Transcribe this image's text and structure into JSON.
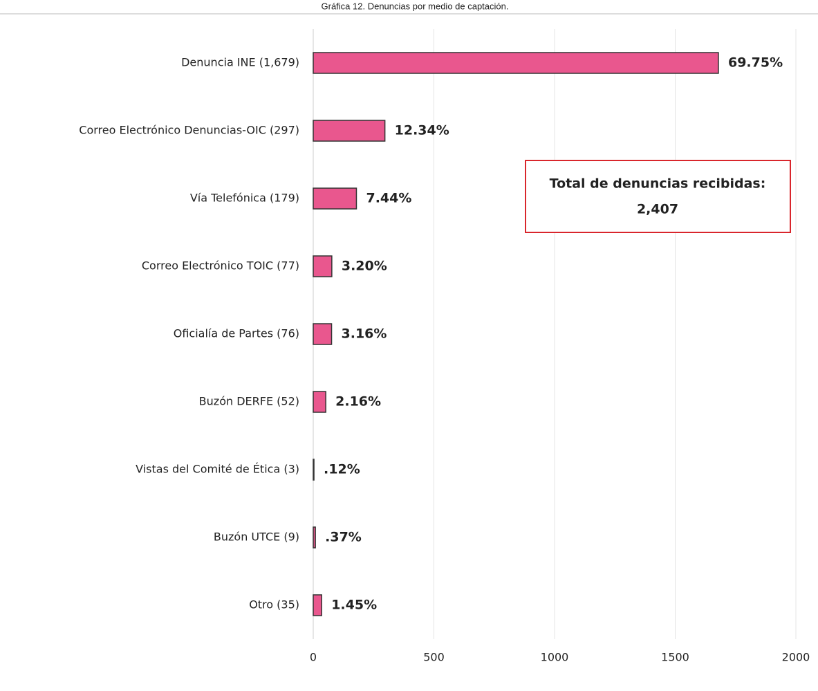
{
  "chart_data": {
    "type": "barh",
    "title": "Gráfica 12. Denuncias por medio de captación.",
    "categories": [
      "Denuncia INE (1,679)",
      "Correo Electrónico Denuncias-OIC (297)",
      "Vía Telefónica (179)",
      "Correo Electrónico TOIC (77)",
      "Oficialía de Partes (76)",
      "Buzón DERFE (52)",
      "Vistas del Comité de Ética (3)",
      "Buzón UTCE (9)",
      "Otro (35)"
    ],
    "values": [
      1679,
      297,
      179,
      77,
      76,
      52,
      3,
      9,
      35
    ],
    "bar_labels": [
      "69.75%",
      "12.34%",
      "7.44%",
      "3.20%",
      "3.16%",
      "2.16%",
      ".12%",
      ".37%",
      "1.45%"
    ],
    "color": "#e9578e",
    "xlim": [
      0,
      2000
    ],
    "xticks": [
      0,
      500,
      1000,
      1500,
      2000
    ],
    "grid": true,
    "annotation": {
      "lines": [
        "Total de denuncias recibidas:",
        "2,407"
      ],
      "border_color": "#d9262c"
    }
  }
}
